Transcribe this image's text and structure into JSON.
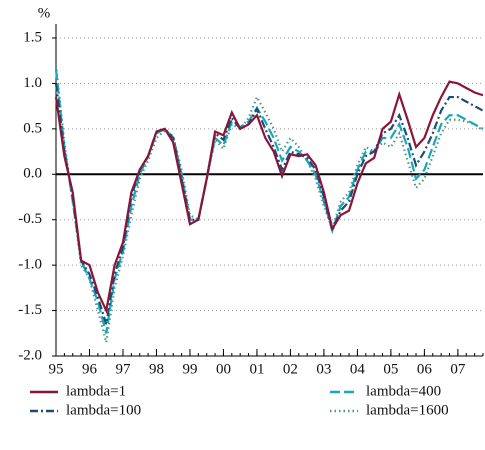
{
  "chart_data": {
    "type": "line",
    "y_label": "%",
    "x": [
      1995,
      1995.25,
      1995.5,
      1995.75,
      1996,
      1996.25,
      1996.5,
      1996.75,
      1997,
      1997.25,
      1997.5,
      1997.75,
      1998,
      1998.25,
      1998.5,
      1998.75,
      1999,
      1999.25,
      1999.5,
      1999.75,
      2000,
      2000.25,
      2000.5,
      2000.75,
      2001,
      2001.25,
      2001.5,
      2001.75,
      2002,
      2002.25,
      2002.5,
      2002.75,
      2003,
      2003.25,
      2003.5,
      2003.75,
      2004,
      2004.25,
      2004.5,
      2004.75,
      2005,
      2005.25,
      2005.5,
      2005.75,
      2006,
      2006.25,
      2006.5,
      2006.75,
      2007,
      2007.25,
      2007.5,
      2007.75
    ],
    "series": [
      {
        "name": "lambda=1",
        "color": "#8b1538",
        "dash": "solid",
        "values": [
          0.85,
          0.2,
          -0.2,
          -0.95,
          -1.0,
          -1.3,
          -1.5,
          -1.0,
          -0.75,
          -0.2,
          0.05,
          0.2,
          0.47,
          0.5,
          0.35,
          -0.1,
          -0.55,
          -0.5,
          -0.05,
          0.47,
          0.43,
          0.68,
          0.5,
          0.55,
          0.65,
          0.4,
          0.25,
          -0.02,
          0.22,
          0.2,
          0.22,
          0.1,
          -0.2,
          -0.6,
          -0.45,
          -0.4,
          -0.1,
          0.12,
          0.18,
          0.5,
          0.58,
          0.88,
          0.6,
          0.3,
          0.4,
          0.65,
          0.85,
          1.02,
          1.0,
          0.95,
          0.9,
          0.87
        ]
      },
      {
        "name": "lambda=100",
        "color": "#1b4f72",
        "dash": "dashdot",
        "values": [
          1.0,
          0.25,
          -0.25,
          -0.95,
          -1.1,
          -1.35,
          -1.65,
          -1.1,
          -0.8,
          -0.25,
          0.05,
          0.2,
          0.47,
          0.5,
          0.4,
          -0.05,
          -0.5,
          -0.5,
          -0.05,
          0.45,
          0.38,
          0.62,
          0.5,
          0.55,
          0.72,
          0.5,
          0.3,
          0.05,
          0.25,
          0.22,
          0.18,
          0.05,
          -0.25,
          -0.62,
          -0.4,
          -0.3,
          0.0,
          0.2,
          0.25,
          0.45,
          0.5,
          0.65,
          0.4,
          0.1,
          0.25,
          0.45,
          0.7,
          0.85,
          0.85,
          0.8,
          0.75,
          0.7
        ]
      },
      {
        "name": "lambda=400",
        "color": "#1ba3bf",
        "dash": "longdash",
        "values": [
          1.15,
          0.3,
          -0.3,
          -0.95,
          -1.15,
          -1.4,
          -1.75,
          -1.15,
          -0.85,
          -0.35,
          0.0,
          0.2,
          0.45,
          0.5,
          0.4,
          0.0,
          -0.5,
          -0.5,
          -0.05,
          0.4,
          0.32,
          0.58,
          0.52,
          0.58,
          0.73,
          0.58,
          0.4,
          0.15,
          0.3,
          0.25,
          0.15,
          0.0,
          -0.3,
          -0.62,
          -0.35,
          -0.25,
          0.05,
          0.25,
          0.25,
          0.4,
          0.4,
          0.55,
          0.3,
          -0.05,
          0.05,
          0.3,
          0.55,
          0.65,
          0.65,
          0.6,
          0.55,
          0.5
        ]
      },
      {
        "name": "lambda=1600",
        "color": "#4a9a86",
        "dash": "dotted",
        "values": [
          1.2,
          0.35,
          -0.3,
          -1.0,
          -1.15,
          -1.5,
          -1.85,
          -1.25,
          -0.9,
          -0.45,
          -0.05,
          0.15,
          0.4,
          0.48,
          0.42,
          0.05,
          -0.45,
          -0.5,
          -0.05,
          0.38,
          0.28,
          0.55,
          0.5,
          0.62,
          0.85,
          0.68,
          0.5,
          0.25,
          0.4,
          0.3,
          0.15,
          -0.05,
          -0.35,
          -0.6,
          -0.3,
          -0.2,
          0.1,
          0.3,
          0.25,
          0.35,
          0.3,
          0.45,
          0.15,
          -0.15,
          -0.05,
          0.2,
          0.45,
          0.6,
          0.6,
          0.58,
          0.55,
          0.48
        ]
      }
    ],
    "xlim": [
      1995,
      2007.75
    ],
    "xticks": [
      {
        "value": 1995,
        "label": "95"
      },
      {
        "value": 1996,
        "label": "96"
      },
      {
        "value": 1997,
        "label": "97"
      },
      {
        "value": 1998,
        "label": "98"
      },
      {
        "value": 1999,
        "label": "99"
      },
      {
        "value": 2000,
        "label": "00"
      },
      {
        "value": 2001,
        "label": "01"
      },
      {
        "value": 2002,
        "label": "02"
      },
      {
        "value": 2003,
        "label": "03"
      },
      {
        "value": 2004,
        "label": "04"
      },
      {
        "value": 2005,
        "label": "05"
      },
      {
        "value": 2006,
        "label": "06"
      },
      {
        "value": 2007,
        "label": "07"
      }
    ],
    "ylim": [
      -2,
      1.5
    ],
    "yticks": [
      1.5,
      {
        "value": 1,
        "label": "1.0"
      },
      0.5,
      {
        "value": 0,
        "label": "0.0"
      },
      -0.5,
      {
        "value": -1,
        "label": "-1.0"
      },
      -1.5,
      {
        "value": -2,
        "label": "-2.0"
      }
    ],
    "grid": true,
    "legend": "bottom"
  }
}
